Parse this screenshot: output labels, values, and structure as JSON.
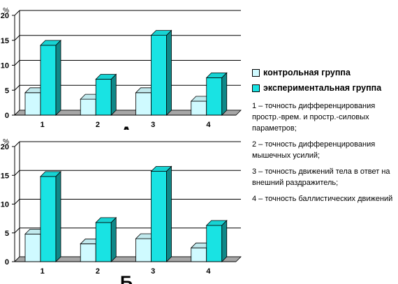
{
  "legend": {
    "control": {
      "label": "контрольная группа",
      "color": "#cffaff"
    },
    "experimental": {
      "label": "экспериментальная группа",
      "color": "#19e3e3"
    }
  },
  "notes": [
    "1 – точность дифференцирования простр.-врем. и простр.-силовых параметров;",
    "2 – точность дифференцирования мышечных усилий;",
    "3 – точность  движений тела в ответ на внешний раздражитель;",
    "4 – точность баллистических движений"
  ],
  "chart_data": [
    {
      "type": "bar",
      "title": "А",
      "ylabel": "%",
      "categories": [
        "1",
        "2",
        "3",
        "4"
      ],
      "ylim": [
        0,
        20
      ],
      "yticks": [
        "0",
        "5",
        "10",
        "15",
        "20"
      ],
      "grid": true,
      "series": [
        {
          "name": "контрольная группа",
          "values": [
            4.5,
            3.2,
            4.5,
            2.8
          ]
        },
        {
          "name": "экспериментальная группа",
          "values": [
            14,
            7.2,
            16,
            7.5
          ]
        }
      ]
    },
    {
      "type": "bar",
      "title": "Б",
      "ylabel": "%",
      "categories": [
        "1",
        "2",
        "3",
        "4"
      ],
      "ylim": [
        0,
        20
      ],
      "yticks": [
        "0",
        "5",
        "10",
        "15",
        "20"
      ],
      "grid": true,
      "series": [
        {
          "name": "контрольная группа",
          "values": [
            4.8,
            3.1,
            4,
            2.4
          ]
        },
        {
          "name": "экспериментальная группа",
          "values": [
            14.8,
            6.8,
            15.7,
            6.3
          ]
        }
      ]
    }
  ]
}
